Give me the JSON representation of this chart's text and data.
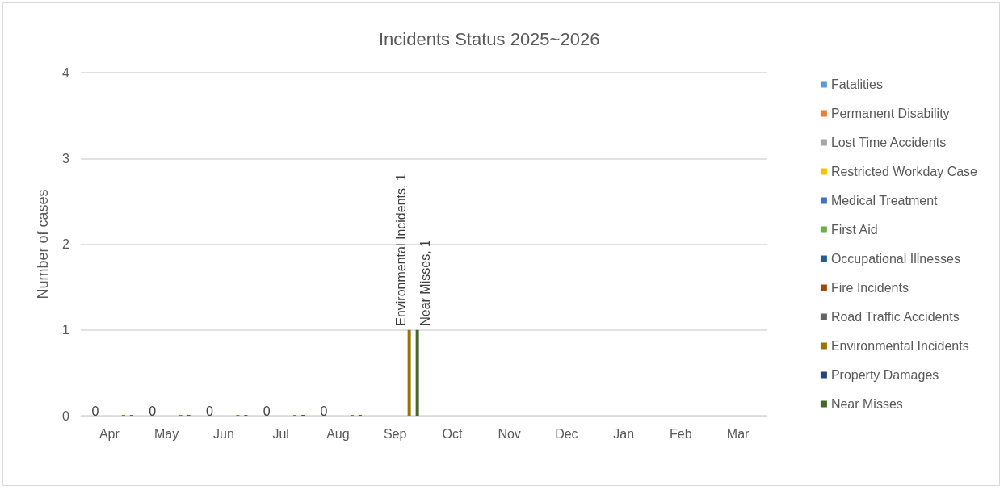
{
  "chart_data": {
    "type": "bar",
    "title": "Incidents Status 2025~2026",
    "ylabel": "Number of cases",
    "categories": [
      "Apr",
      "May",
      "Jun",
      "Jul",
      "Aug",
      "Sep",
      "Oct",
      "Nov",
      "Dec",
      "Jan",
      "Feb",
      "Mar"
    ],
    "ylim": [
      0,
      4
    ],
    "yticks": [
      0,
      1,
      2,
      3,
      4
    ],
    "grid": "y",
    "legend": "right",
    "series": [
      {
        "name": "Fatalities",
        "color": "#5b9bd5",
        "values": [
          0,
          0,
          0,
          0,
          0,
          0,
          null,
          null,
          null,
          null,
          null,
          null
        ]
      },
      {
        "name": "Permanent Disability",
        "color": "#ed7d31",
        "values": [
          0,
          0,
          0,
          0,
          0,
          0,
          null,
          null,
          null,
          null,
          null,
          null
        ]
      },
      {
        "name": "Lost Time Accidents",
        "color": "#a5a5a5",
        "values": [
          0,
          0,
          0,
          0,
          0,
          null,
          null,
          null,
          null,
          null,
          null,
          null
        ],
        "value_labels": [
          "0",
          "0",
          "0",
          "0",
          "0",
          null,
          null,
          null,
          null,
          null,
          null,
          null
        ]
      },
      {
        "name": "Restricted Workday Case",
        "color": "#ffc000",
        "values": [
          0,
          0,
          0,
          0,
          0,
          0,
          null,
          null,
          null,
          null,
          null,
          null
        ]
      },
      {
        "name": "Medical Treatment",
        "color": "#4472c4",
        "values": [
          0,
          0,
          0,
          0,
          0,
          0,
          null,
          null,
          null,
          null,
          null,
          null
        ]
      },
      {
        "name": "First Aid",
        "color": "#70ad47",
        "values": [
          0,
          0,
          0,
          0,
          0,
          0,
          null,
          null,
          null,
          null,
          null,
          null
        ]
      },
      {
        "name": "Occupational Illnesses",
        "color": "#255e91",
        "values": [
          0,
          0,
          0,
          0,
          0,
          0,
          null,
          null,
          null,
          null,
          null,
          null
        ]
      },
      {
        "name": "Fire Incidents",
        "color": "#9e480e",
        "values": [
          0,
          0,
          0,
          0,
          0,
          0,
          null,
          null,
          null,
          null,
          null,
          null
        ]
      },
      {
        "name": "Road Traffic Accidents",
        "color": "#636363",
        "values": [
          0,
          0,
          0,
          0,
          0,
          0,
          null,
          null,
          null,
          null,
          null,
          null
        ]
      },
      {
        "name": "Environmental Incidents",
        "color": "#997300",
        "values": [
          0,
          0,
          0,
          0,
          0,
          1,
          null,
          null,
          null,
          null,
          null,
          null
        ],
        "value_labels": [
          null,
          null,
          null,
          null,
          null,
          "Environmental Incidents, 1",
          null,
          null,
          null,
          null,
          null,
          null
        ]
      },
      {
        "name": "Property Damages",
        "color": "#264478",
        "values": [
          0,
          0,
          0,
          0,
          0,
          0,
          null,
          null,
          null,
          null,
          null,
          null
        ]
      },
      {
        "name": "Near Misses",
        "color": "#43682b",
        "values": [
          0,
          0,
          0,
          0,
          0,
          1,
          null,
          null,
          null,
          null,
          null,
          null
        ],
        "value_labels": [
          null,
          null,
          null,
          null,
          null,
          "Near Misses, 1",
          null,
          null,
          null,
          null,
          null,
          null
        ]
      }
    ]
  }
}
